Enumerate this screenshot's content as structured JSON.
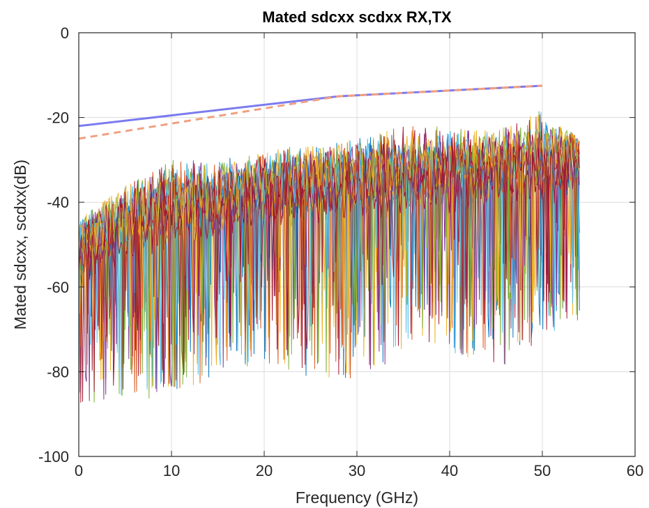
{
  "chart_data": {
    "type": "line",
    "title": "Mated sdcxx scdxx RX,TX",
    "xlabel": "Frequency (GHz)",
    "ylabel": "Mated sdcxx, scdxx(dB)",
    "xlim": [
      0,
      60
    ],
    "ylim": [
      -100,
      0
    ],
    "xticks": [
      0,
      10,
      20,
      30,
      40,
      50,
      60
    ],
    "yticks": [
      0,
      -20,
      -40,
      -60,
      -80,
      -100
    ],
    "xtick_labels": [
      "0",
      "10",
      "20",
      "30",
      "40",
      "50",
      "60"
    ],
    "ytick_labels": [
      "0",
      "-20",
      "-40",
      "-60",
      "-80",
      "-100"
    ],
    "grid": true,
    "legend": "none",
    "limit_lines": [
      {
        "style": "solid",
        "color": "#7b7bf0",
        "x": [
          0,
          28,
          50
        ],
        "y": [
          -22,
          -15,
          -12.5
        ]
      },
      {
        "style": "dashed",
        "color": "#f0a080",
        "x": [
          0,
          28,
          50
        ],
        "y": [
          -25,
          -15,
          -12.5
        ]
      }
    ],
    "measured_traces": {
      "x_range": [
        0,
        54
      ],
      "count": 16,
      "colors": [
        "#0072BD",
        "#D95319",
        "#EDB120",
        "#7E2F8E",
        "#77AC30",
        "#4DBEEE",
        "#A2142F",
        "#0072BD",
        "#D95319",
        "#EDB120",
        "#7E2F8E",
        "#77AC30",
        "#4DBEEE",
        "#A2142F",
        "#EDB120",
        "#A2142F"
      ],
      "envelope": {
        "x": [
          0,
          5,
          10,
          15,
          20,
          25,
          30,
          35,
          40,
          45,
          50,
          54
        ],
        "upper": [
          -44,
          -36,
          -30,
          -30,
          -28,
          -26,
          -25,
          -22,
          -22,
          -23,
          -18,
          -25
        ],
        "median": [
          -52,
          -45,
          -42,
          -40,
          -38,
          -36,
          -35,
          -34,
          -33,
          -32,
          -31,
          -30
        ],
        "lower": [
          -88,
          -86,
          -88,
          -80,
          -78,
          -82,
          -82,
          -76,
          -76,
          -80,
          -72,
          -68
        ]
      }
    }
  }
}
